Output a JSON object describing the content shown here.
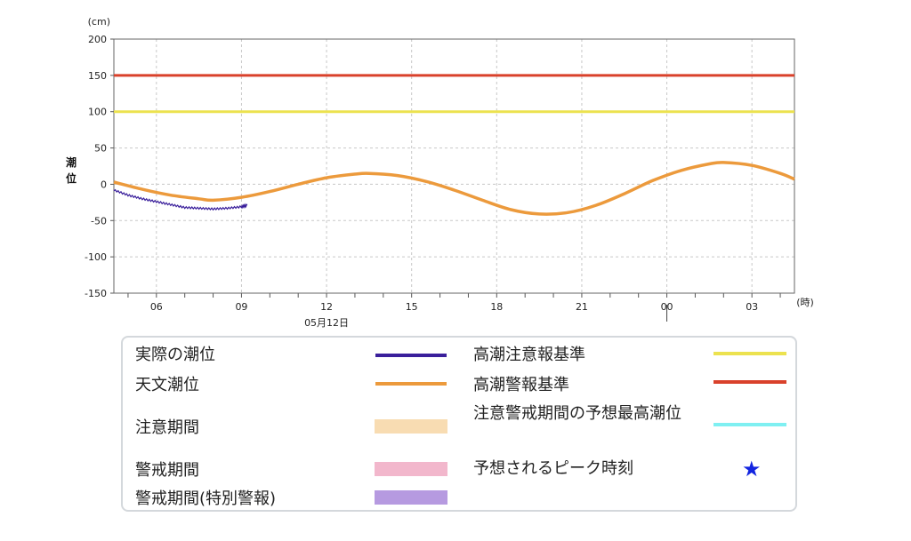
{
  "chart_data": {
    "type": "line",
    "y_unit": "(cm)",
    "x_unit": "(時)",
    "ylabel": "潮位",
    "ylim": [
      -150,
      200
    ],
    "yticks": [
      200,
      150,
      100,
      50,
      0,
      -50,
      -100,
      -150
    ],
    "x_range_hours": [
      4.5,
      28.5
    ],
    "xticks": [
      {
        "hour": 6,
        "label": "06"
      },
      {
        "hour": 9,
        "label": "09"
      },
      {
        "hour": 12,
        "label": "12"
      },
      {
        "hour": 15,
        "label": "15"
      },
      {
        "hour": 18,
        "label": "18"
      },
      {
        "hour": 21,
        "label": "21"
      },
      {
        "hour": 24,
        "label": "00"
      },
      {
        "hour": 27,
        "label": "03"
      }
    ],
    "date_label": "05月12日",
    "grid": true,
    "thresholds": [
      {
        "name": "高潮警報基準",
        "value": 150,
        "color": "#d9412b"
      },
      {
        "name": "高潮注意報基準",
        "value": 100,
        "color": "#ece24f"
      }
    ],
    "series": [
      {
        "name": "天文潮位",
        "color": "#ec9a3c",
        "x": [
          4.5,
          5.5,
          6.5,
          7.5,
          8.0,
          9.0,
          10.0,
          11.0,
          12.0,
          13.0,
          13.5,
          14.5,
          15.5,
          16.5,
          17.5,
          18.5,
          19.5,
          20.5,
          21.5,
          22.5,
          23.5,
          24.5,
          25.5,
          26.0,
          27.0,
          28.0,
          28.5
        ],
        "y": [
          3,
          -7,
          -15,
          -20,
          -22,
          -18,
          -10,
          0,
          9,
          14,
          15,
          12,
          4,
          -8,
          -22,
          -35,
          -41,
          -39,
          -29,
          -13,
          5,
          19,
          28,
          30,
          26,
          15,
          7
        ]
      },
      {
        "name": "実際の潮位",
        "color": "#3a1f9b",
        "x": [
          4.5,
          5.0,
          5.5,
          6.0,
          6.5,
          7.0,
          7.5,
          8.0,
          8.5,
          9.0,
          9.2
        ],
        "y": [
          -8,
          -15,
          -20,
          -24,
          -28,
          -32,
          -33,
          -34,
          -33,
          -31,
          -29
        ]
      }
    ]
  },
  "legend": {
    "items": [
      {
        "label": "実際の潮位",
        "kind": "line",
        "color": "#3a1f9b"
      },
      {
        "label": "天文潮位",
        "kind": "line",
        "color": "#ec9a3c"
      },
      {
        "label": "注意期間",
        "kind": "box",
        "color": "#f8dcb2"
      },
      {
        "label": "警戒期間",
        "kind": "box",
        "color": "#f2b7cc"
      },
      {
        "label": "警戒期間(特別警報)",
        "kind": "box",
        "color": "#b69ae0"
      },
      {
        "label": "高潮注意報基準",
        "kind": "line",
        "color": "#ece24f"
      },
      {
        "label": "高潮警報基準",
        "kind": "line",
        "color": "#d9412b"
      },
      {
        "label": "注意警戒期間の予想最高潮位",
        "kind": "line",
        "color": "#7ff0f2"
      },
      {
        "label": "予想されるピーク時刻",
        "kind": "star",
        "icon": "star-icon",
        "color": "#1224e0"
      }
    ]
  }
}
